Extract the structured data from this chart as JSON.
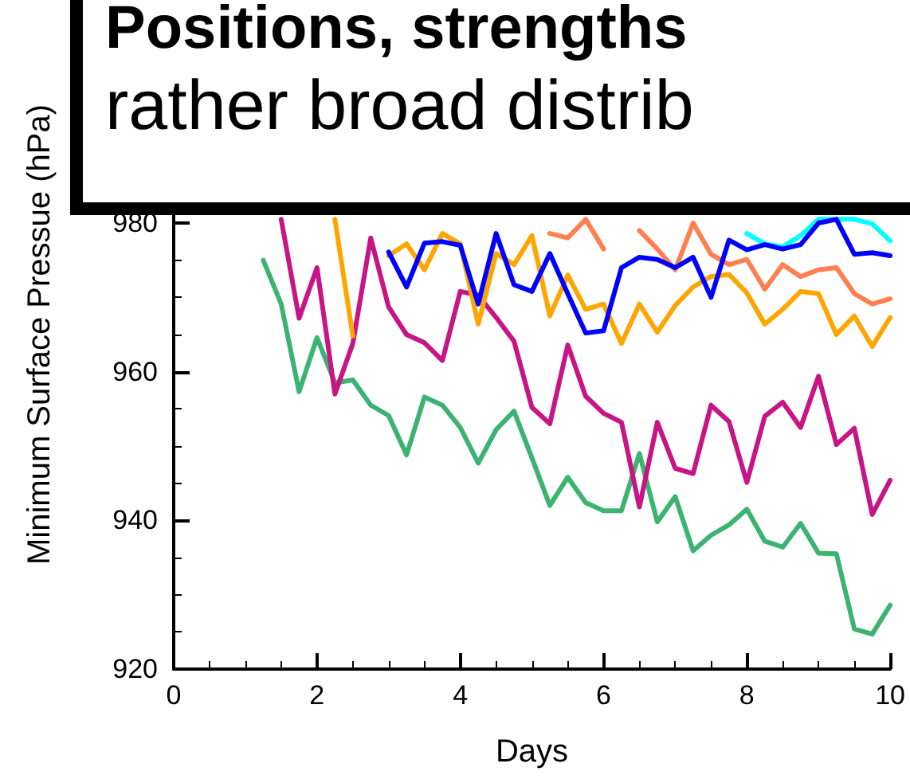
{
  "chart_data": {
    "type": "line",
    "title": "Positions, strengths",
    "subtitle": "rather broad distrib",
    "xlabel": "Days",
    "ylabel": "Minimum Surface Pressue (hPa)",
    "x": [
      1.25,
      1.5,
      1.75,
      2,
      2.25,
      2.5,
      2.75,
      3,
      3.25,
      3.5,
      3.75,
      4,
      4.25,
      4.5,
      4.75,
      5,
      5.25,
      5.5,
      5.75,
      6,
      6.25,
      6.5,
      6.75,
      7,
      7.25,
      7.5,
      7.75,
      8,
      8.25,
      8.5,
      8.75,
      9,
      9.25,
      9.5,
      9.75,
      10
    ],
    "series": [
      {
        "color": "#3cb371",
        "values": [
          975,
          969.1,
          957.3,
          964.6,
          958.5,
          958.9,
          955.5,
          954.1,
          948.8,
          956.6,
          955.5,
          952.5,
          947.7,
          952.2,
          954.7,
          948.4,
          942,
          945.8,
          942.4,
          941.3,
          941.3,
          949,
          939.8,
          943.2,
          935.9,
          938,
          939.4,
          941.5,
          937.2,
          936.4,
          939.6,
          935.6,
          935.5,
          925.4,
          924.7,
          928.6
        ]
      },
      {
        "color": "#c71585",
        "values": [
          null,
          980.5,
          967.2,
          974,
          957,
          963.8,
          978,
          968.7,
          965,
          963.9,
          961.5,
          970.8,
          970.3,
          967.3,
          964.1,
          955.2,
          953,
          963.6,
          956.7,
          954.4,
          953.2,
          941.8,
          953.2,
          947,
          946.3,
          955.5,
          953.3,
          945.1,
          954,
          955.9,
          952.5,
          959.4,
          950.2,
          952.4,
          940.8,
          945.4
        ]
      },
      {
        "color": "#ffa500",
        "values": [
          null,
          null,
          null,
          null,
          980.5,
          964.8,
          null,
          975.6,
          977.2,
          973.7,
          978.6,
          977.2,
          966.4,
          975.9,
          974.4,
          978.3,
          967.5,
          973,
          968.4,
          969.1,
          963.8,
          969.1,
          965.3,
          968.9,
          971.4,
          972.8,
          973.1,
          970.6,
          966.4,
          968.4,
          970.8,
          970.5,
          965,
          967.5,
          963.4,
          967.3
        ]
      },
      {
        "color": "#ff7f50",
        "values": [
          null,
          null,
          null,
          null,
          null,
          null,
          null,
          null,
          null,
          null,
          null,
          null,
          null,
          null,
          null,
          null,
          978.6,
          978,
          980.5,
          976.5,
          null,
          979,
          976.5,
          973.7,
          980,
          975.8,
          974.4,
          975.1,
          971.1,
          974.4,
          972.8,
          973.7,
          974,
          970.5,
          969.1,
          969.8
        ]
      },
      {
        "color": "#00ffff",
        "values": [
          null,
          null,
          null,
          null,
          null,
          null,
          null,
          null,
          null,
          null,
          null,
          null,
          null,
          null,
          null,
          null,
          null,
          null,
          null,
          null,
          null,
          null,
          null,
          null,
          null,
          null,
          null,
          978.6,
          977.2,
          976.8,
          978.3,
          980.5,
          980.5,
          980.5,
          979.9,
          977.6
        ]
      },
      {
        "color": "#0000ff",
        "values": [
          null,
          null,
          null,
          null,
          null,
          null,
          null,
          976.1,
          971.4,
          977.3,
          977.5,
          977,
          969.1,
          978.6,
          971.7,
          970.8,
          975.9,
          970.5,
          965.2,
          965.5,
          974,
          975.4,
          975.1,
          974,
          975.4,
          970,
          977.7,
          976.4,
          977.1,
          976.5,
          977.1,
          980,
          980.5,
          975.8,
          976,
          975.6
        ]
      }
    ],
    "xlim": [
      0,
      10
    ],
    "xticks": [
      0,
      2,
      4,
      6,
      8,
      10
    ],
    "ylim": [
      920,
      1010
    ],
    "yticks": [
      920,
      940,
      960,
      980
    ],
    "grid": false,
    "marker": "none",
    "line_style": "solid"
  }
}
